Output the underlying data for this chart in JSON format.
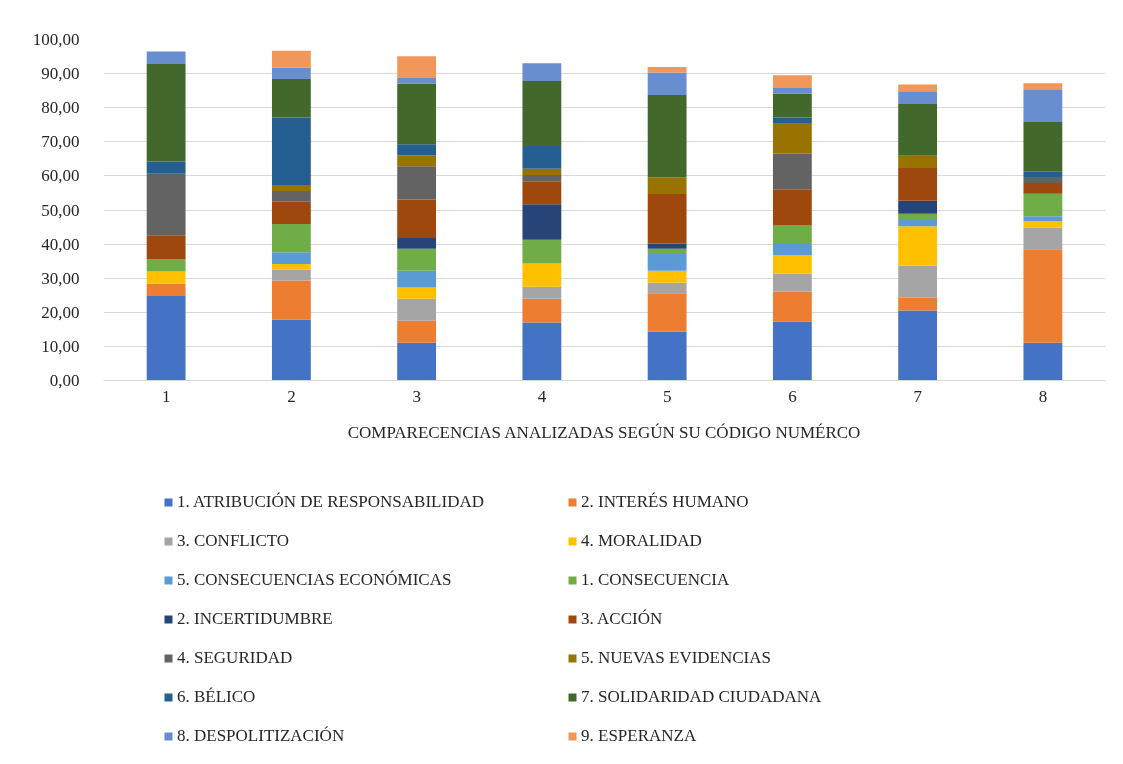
{
  "chart_data": {
    "type": "bar",
    "stacked": true,
    "xlabel": "COMPARECENCIAS ANALIZADAS SEGÚN SU CÓDIGO NUMÉRCO",
    "categories": [
      "1",
      "2",
      "3",
      "4",
      "5",
      "6",
      "7",
      "8"
    ],
    "ylim": [
      0,
      100
    ],
    "yticks": [
      {
        "value": 0,
        "label": "0,00"
      },
      {
        "value": 10,
        "label": "10,00"
      },
      {
        "value": 20,
        "label": "20,00"
      },
      {
        "value": 30,
        "label": "30,00"
      },
      {
        "value": 40,
        "label": "40,00"
      },
      {
        "value": 50,
        "label": "50,00"
      },
      {
        "value": 60,
        "label": "60,00"
      },
      {
        "value": 70,
        "label": "70,00"
      },
      {
        "value": 80,
        "label": "80,00"
      },
      {
        "value": 90,
        "label": "90,00"
      },
      {
        "value": 100,
        "label": "100,00"
      }
    ],
    "grid": "y",
    "legend": "bottom",
    "series": [
      {
        "name": "1. ATRIBUCIÓN DE RESPONSABILIDAD",
        "color": "#4472c4",
        "values": [
          24.8,
          17.8,
          11.1,
          17.0,
          14.3,
          17.3,
          20.5,
          11.1
        ]
      },
      {
        "name": "2. INTERÉS HUMANO",
        "color": "#ed7d31",
        "values": [
          3.6,
          11.5,
          6.4,
          7.0,
          11.3,
          8.8,
          3.8,
          27.4
        ]
      },
      {
        "name": "3. CONFLICTO",
        "color": "#a5a5a5",
        "values": [
          null,
          3.2,
          6.5,
          3.5,
          3.1,
          5.3,
          9.4,
          6.4
        ]
      },
      {
        "name": "4. MORALIDAD",
        "color": "#ffc000",
        "values": [
          3.6,
          1.7,
          3.3,
          6.8,
          3.5,
          5.3,
          11.5,
          1.8
        ]
      },
      {
        "name": "5. CONSECUENCIAS ECONÓMICAS",
        "color": "#5b9bd5",
        "values": [
          null,
          3.4,
          4.9,
          null,
          4.9,
          3.6,
          1.9,
          1.5
        ]
      },
      {
        "name": "1. CONSECUENCIA",
        "color": "#70ad47",
        "values": [
          3.5,
          8.3,
          6.4,
          7.0,
          1.5,
          5.3,
          1.8,
          6.6
        ]
      },
      {
        "name": "2. INCERTIDUMBRE",
        "color": "#264478",
        "values": [
          null,
          null,
          3.2,
          10.4,
          1.6,
          null,
          3.8,
          null
        ]
      },
      {
        "name": "3. ACCIÓN",
        "color": "#9e480e",
        "values": [
          7.1,
          6.5,
          11.3,
          6.7,
          14.5,
          10.5,
          9.6,
          3.1
        ]
      },
      {
        "name": "4. SEGURIDAD",
        "color": "#636363",
        "values": [
          18.0,
          3.2,
          9.7,
          1.9,
          null,
          10.5,
          null,
          1.8
        ]
      },
      {
        "name": "5. NUEVAS EVIDENCIAS",
        "color": "#997300",
        "values": [
          null,
          1.7,
          3.2,
          1.8,
          4.9,
          8.7,
          3.6,
          null
        ]
      },
      {
        "name": "6. BÉLICO",
        "color": "#255e91",
        "values": [
          3.6,
          19.8,
          3.3,
          6.7,
          null,
          1.8,
          null,
          1.5
        ]
      },
      {
        "name": "7. SOLIDARIDAD CIUDADANA",
        "color": "#43682b",
        "values": [
          28.6,
          11.3,
          17.7,
          19.0,
          24.1,
          7.0,
          15.2,
          14.6
        ]
      },
      {
        "name": "8. DESPOLITIZACIÓN",
        "color": "#698ed0",
        "values": [
          3.7,
          3.3,
          1.7,
          5.2,
          6.6,
          1.7,
          3.7,
          9.6
        ]
      },
      {
        "name": "9. ESPERANZA",
        "color": "#f1975a",
        "values": [
          null,
          5.0,
          6.4,
          null,
          1.6,
          3.7,
          2.0,
          1.8
        ]
      }
    ]
  }
}
